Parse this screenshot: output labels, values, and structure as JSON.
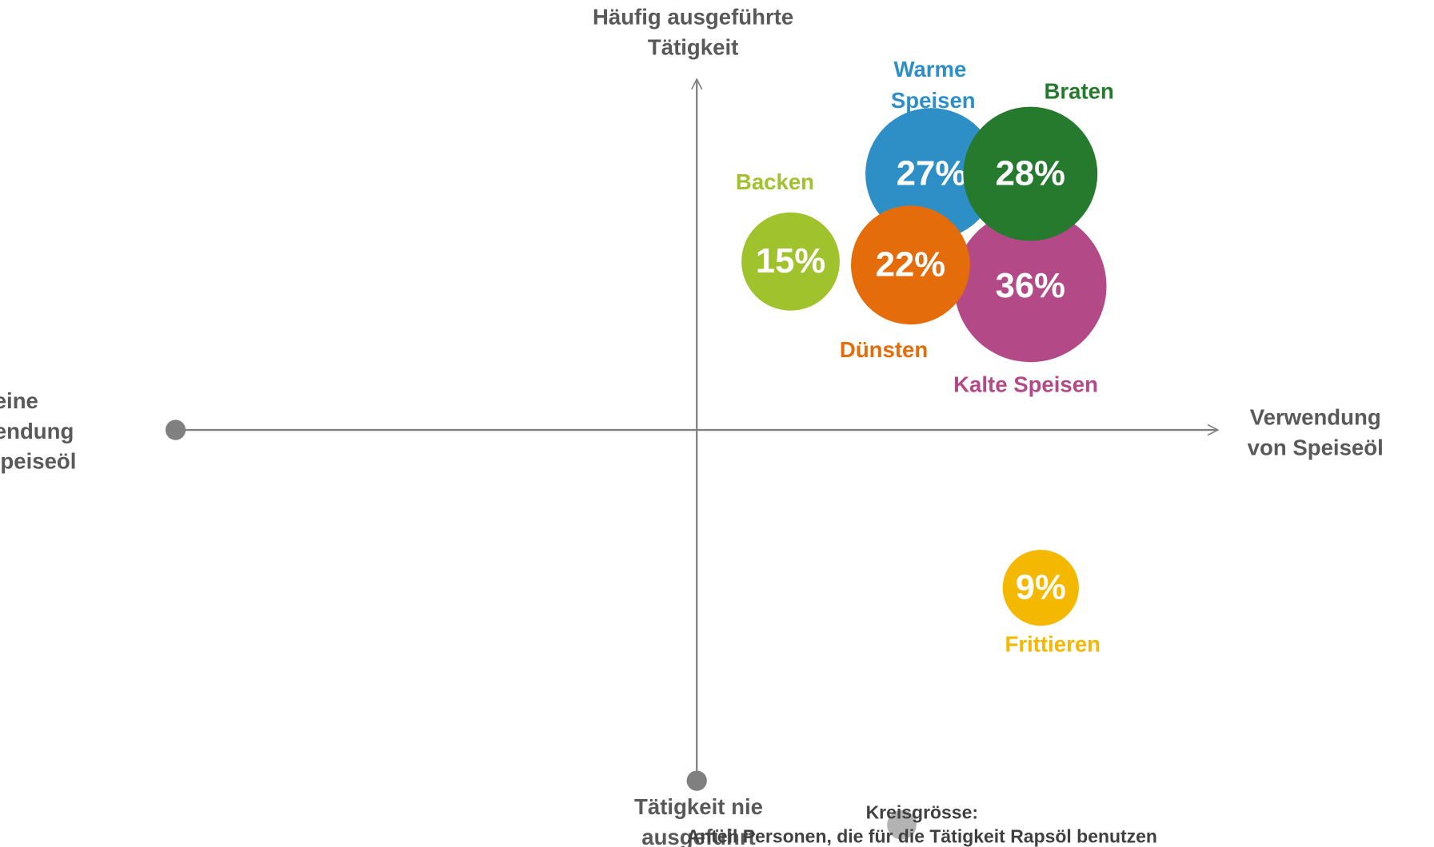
{
  "chart_data": {
    "type": "bubble",
    "axis_labels": {
      "top": [
        "Häufig ausgeführte",
        "Tätigkeit"
      ],
      "bottom": [
        "Tätigkeit nie",
        "ausgeführt"
      ],
      "left": [
        "Keine",
        "Verwendung",
        "von Speiseöl"
      ],
      "right": [
        "Verwendung",
        "von Speiseöl"
      ]
    },
    "axis_color": "#808080",
    "xlim": [
      -10,
      10
    ],
    "ylim": [
      -10,
      10
    ],
    "series": [
      {
        "name": "Kalte Speisen",
        "color": "#b34a87",
        "x": [
          6.4
        ],
        "y": [
          4.1
        ],
        "values": [
          36
        ],
        "value_labels": [
          "36%"
        ]
      },
      {
        "name": "Warme Speisen",
        "color": "#2e8fc6",
        "x": [
          4.5
        ],
        "y": [
          7.3
        ],
        "values": [
          27
        ],
        "value_labels": [
          "27%"
        ]
      },
      {
        "name": "Braten",
        "color": "#267a2e",
        "x": [
          6.4
        ],
        "y": [
          7.3
        ],
        "values": [
          28
        ],
        "value_labels": [
          "28%"
        ]
      },
      {
        "name": "Backen",
        "color": "#a0c22d",
        "x": [
          1.8
        ],
        "y": [
          4.8
        ],
        "values": [
          15
        ],
        "value_labels": [
          "15%"
        ]
      },
      {
        "name": "Dünsten",
        "color": "#e46c0a",
        "x": [
          4.1
        ],
        "y": [
          4.7
        ],
        "values": [
          22
        ],
        "value_labels": [
          "22%"
        ]
      },
      {
        "name": "Frittieren",
        "color": "#f5b800",
        "x": [
          6.6
        ],
        "y": [
          -4.5
        ],
        "values": [
          9
        ],
        "value_labels": [
          "9%"
        ]
      }
    ],
    "legend": {
      "title": "Kreisgrösse:",
      "text": "Anteil Personen, die für die Tätigkeit Rapsöl benutzen",
      "color": "#b3b3b3"
    }
  }
}
